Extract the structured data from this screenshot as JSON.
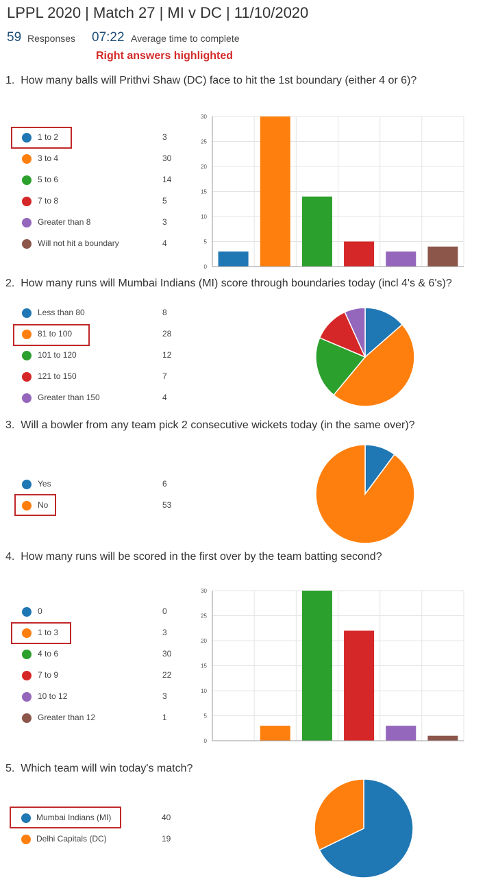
{
  "header": {
    "title": "LPPL 2020 | Match 27 | MI v DC | 11/10/2020",
    "responses_count": "59",
    "responses_label": "Responses",
    "avg_time": "07:22",
    "avg_time_label": "Average time to complete",
    "note": "Right answers highlighted"
  },
  "colors": {
    "blue": "#1f77b4",
    "orange": "#ff7f0e",
    "green": "#2ca02c",
    "red": "#d62728",
    "purple": "#9467bd",
    "brown": "#8c564b",
    "highlight": "#c0282a"
  },
  "questions": [
    {
      "number": "1.",
      "text": "How many balls will Prithvi Shaw (DC) face to hit the 1st boundary (either 4 or 6)?",
      "options": [
        {
          "label": "1 to 2",
          "count": "3",
          "highlighted": true
        },
        {
          "label": "3 to 4",
          "count": "30"
        },
        {
          "label": "5 to 6",
          "count": "14"
        },
        {
          "label": "7 to 8",
          "count": "5"
        },
        {
          "label": "Greater than 8",
          "count": "3"
        },
        {
          "label": "Will not hit a boundary",
          "count": "4"
        }
      ]
    },
    {
      "number": "2.",
      "text": "How many runs will Mumbai Indians (MI) score through boundaries today (incl 4's & 6's)?",
      "options": [
        {
          "label": "Less than 80",
          "count": "8"
        },
        {
          "label": "81 to 100",
          "count": "28",
          "highlighted": true
        },
        {
          "label": "101 to 120",
          "count": "12"
        },
        {
          "label": "121 to 150",
          "count": "7"
        },
        {
          "label": "Greater than 150",
          "count": "4"
        }
      ]
    },
    {
      "number": "3.",
      "text": "Will a bowler from any team pick 2 consecutive wickets today (in the same over)?",
      "options": [
        {
          "label": "Yes",
          "count": "6"
        },
        {
          "label": "No",
          "count": "53",
          "highlighted": true
        }
      ]
    },
    {
      "number": "4.",
      "text": "How many runs will be scored in the first over by the team batting second?",
      "options": [
        {
          "label": "0",
          "count": "0"
        },
        {
          "label": "1 to 3",
          "count": "3",
          "highlighted": true
        },
        {
          "label": "4 to 6",
          "count": "30"
        },
        {
          "label": "7 to 9",
          "count": "22"
        },
        {
          "label": "10 to 12",
          "count": "3"
        },
        {
          "label": "Greater than 12",
          "count": "1"
        }
      ]
    },
    {
      "number": "5.",
      "text": "Which team will win today's match?",
      "options": [
        {
          "label": "Mumbai Indians (MI)",
          "count": "40",
          "highlighted": true
        },
        {
          "label": "Delhi Capitals (DC)",
          "count": "19"
        }
      ]
    }
  ],
  "chart_data": [
    {
      "type": "bar",
      "categories": [
        "1 to 2",
        "3 to 4",
        "5 to 6",
        "7 to 8",
        "Greater than 8",
        "Will not hit a boundary"
      ],
      "values": [
        3,
        30,
        14,
        5,
        3,
        4
      ],
      "ylim": [
        0,
        30
      ],
      "yticks": [
        "0",
        "5",
        "10",
        "15",
        "20",
        "25",
        "30"
      ],
      "grid": true
    },
    {
      "type": "pie",
      "categories": [
        "Less than 80",
        "81 to 100",
        "101 to 120",
        "121 to 150",
        "Greater than 150"
      ],
      "values": [
        8,
        28,
        12,
        7,
        4
      ]
    },
    {
      "type": "pie",
      "categories": [
        "Yes",
        "No"
      ],
      "values": [
        6,
        53
      ]
    },
    {
      "type": "bar",
      "categories": [
        "0",
        "1 to 3",
        "4 to 6",
        "7 to 9",
        "10 to 12",
        "Greater than 12"
      ],
      "values": [
        0,
        3,
        30,
        22,
        3,
        1
      ],
      "ylim": [
        0,
        30
      ],
      "yticks": [
        "0",
        "5",
        "10",
        "15",
        "20",
        "25",
        "30"
      ],
      "grid": true
    },
    {
      "type": "pie",
      "categories": [
        "Mumbai Indians (MI)",
        "Delhi Capitals (DC)"
      ],
      "values": [
        40,
        19
      ]
    }
  ]
}
